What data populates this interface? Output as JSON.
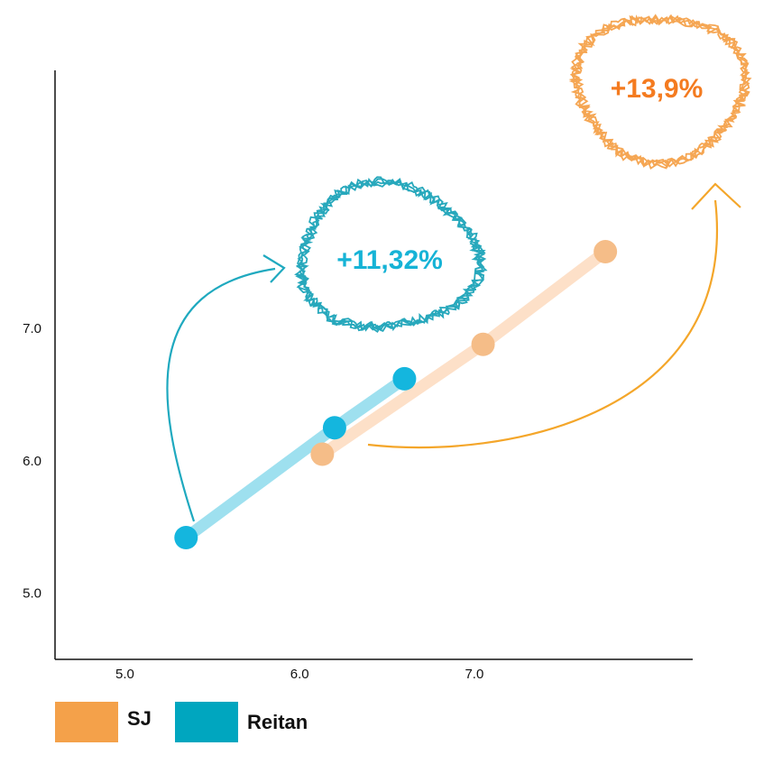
{
  "chart_data": {
    "type": "scatter",
    "title": "",
    "xlabel": "",
    "ylabel": "",
    "x_ticks": [
      "5.0",
      "6.0",
      "7.0"
    ],
    "y_ticks": [
      "5.0",
      "6.0",
      "7.0"
    ],
    "xlim": [
      4.6,
      8.25
    ],
    "ylim": [
      4.5,
      8.95
    ],
    "grid": false,
    "legend_position": "bottom-left",
    "series": [
      {
        "name": "SJ",
        "color": "#f4a14a",
        "point_color": "#f5bd88",
        "line_color": "#fde0c8",
        "annotation_color": "#f47b20",
        "annotation": "+13,9%",
        "points": [
          {
            "x": 6.13,
            "y": 6.05
          },
          {
            "x": 7.05,
            "y": 6.88
          },
          {
            "x": 7.75,
            "y": 7.58
          }
        ]
      },
      {
        "name": "Reitan",
        "color": "#00a6bf",
        "point_color": "#14b6de",
        "line_color": "#9ee0ef",
        "annotation_color": "#16b3d6",
        "annotation": "+11,32%",
        "points": [
          {
            "x": 5.35,
            "y": 5.42
          },
          {
            "x": 6.2,
            "y": 6.25
          },
          {
            "x": 6.6,
            "y": 6.62
          }
        ]
      }
    ]
  }
}
